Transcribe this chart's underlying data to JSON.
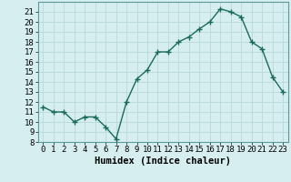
{
  "x": [
    0,
    1,
    2,
    3,
    4,
    5,
    6,
    7,
    8,
    9,
    10,
    11,
    12,
    13,
    14,
    15,
    16,
    17,
    18,
    19,
    20,
    21,
    22,
    23
  ],
  "y": [
    11.5,
    11.0,
    11.0,
    10.0,
    10.5,
    10.5,
    9.5,
    8.3,
    12.0,
    14.3,
    15.2,
    17.0,
    17.0,
    18.0,
    18.5,
    19.3,
    20.0,
    21.3,
    21.0,
    20.5,
    18.0,
    17.3,
    14.5,
    13.0
  ],
  "line_color": "#1a6b5a",
  "marker": "+",
  "marker_size": 4,
  "marker_linewidth": 1.0,
  "line_width": 1.0,
  "bg_color": "#d6eef0",
  "grid_color": "#b8d8dc",
  "xlabel": "Humidex (Indice chaleur)",
  "xlim": [
    -0.5,
    23.5
  ],
  "ylim": [
    8,
    22
  ],
  "xticks": [
    0,
    1,
    2,
    3,
    4,
    5,
    6,
    7,
    8,
    9,
    10,
    11,
    12,
    13,
    14,
    15,
    16,
    17,
    18,
    19,
    20,
    21,
    22,
    23
  ],
  "yticks": [
    8,
    9,
    10,
    11,
    12,
    13,
    14,
    15,
    16,
    17,
    18,
    19,
    20,
    21
  ],
  "font_size_ticks": 6.5,
  "font_size_label": 7.5,
  "spine_color": "#5a9a9a"
}
